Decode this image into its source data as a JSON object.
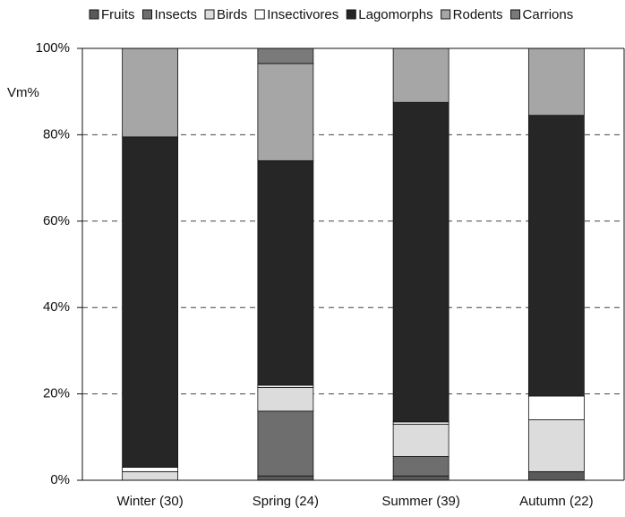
{
  "chart_data": {
    "type": "stacked_bar",
    "y_label": "Vm%",
    "categories": [
      "Winter (30)",
      "Spring (24)",
      "Summer (39)",
      "Autumn (22)"
    ],
    "series": [
      {
        "name": "Fruits",
        "color": "#5a5a5a",
        "values": [
          0,
          1,
          1,
          2
        ]
      },
      {
        "name": "Insects",
        "color": "#6e6e6e",
        "values": [
          0,
          15,
          4.5,
          0
        ]
      },
      {
        "name": "Birds",
        "color": "#dcdcdc",
        "values": [
          2,
          5.5,
          7.5,
          12
        ]
      },
      {
        "name": "Insectivores",
        "color": "#ffffff",
        "values": [
          1,
          0.5,
          0.5,
          5.5
        ]
      },
      {
        "name": "Lagomorphs",
        "color": "#262626",
        "values": [
          76.5,
          52,
          74,
          65
        ]
      },
      {
        "name": "Rodents",
        "color": "#a6a6a6",
        "values": [
          20.5,
          22.5,
          12.5,
          15.5
        ]
      },
      {
        "name": "Carrions",
        "color": "#7a7a7a",
        "values": [
          0,
          3.5,
          0,
          0
        ]
      }
    ],
    "ylim": [
      0,
      100
    ],
    "yticks": [
      {
        "value": 0,
        "label": "0%"
      },
      {
        "value": 20,
        "label": "20%"
      },
      {
        "value": 40,
        "label": "40%"
      },
      {
        "value": 60,
        "label": "60%"
      },
      {
        "value": 80,
        "label": "80%"
      },
      {
        "value": 100,
        "label": "100%"
      }
    ],
    "grid": true,
    "legend": "top"
  }
}
